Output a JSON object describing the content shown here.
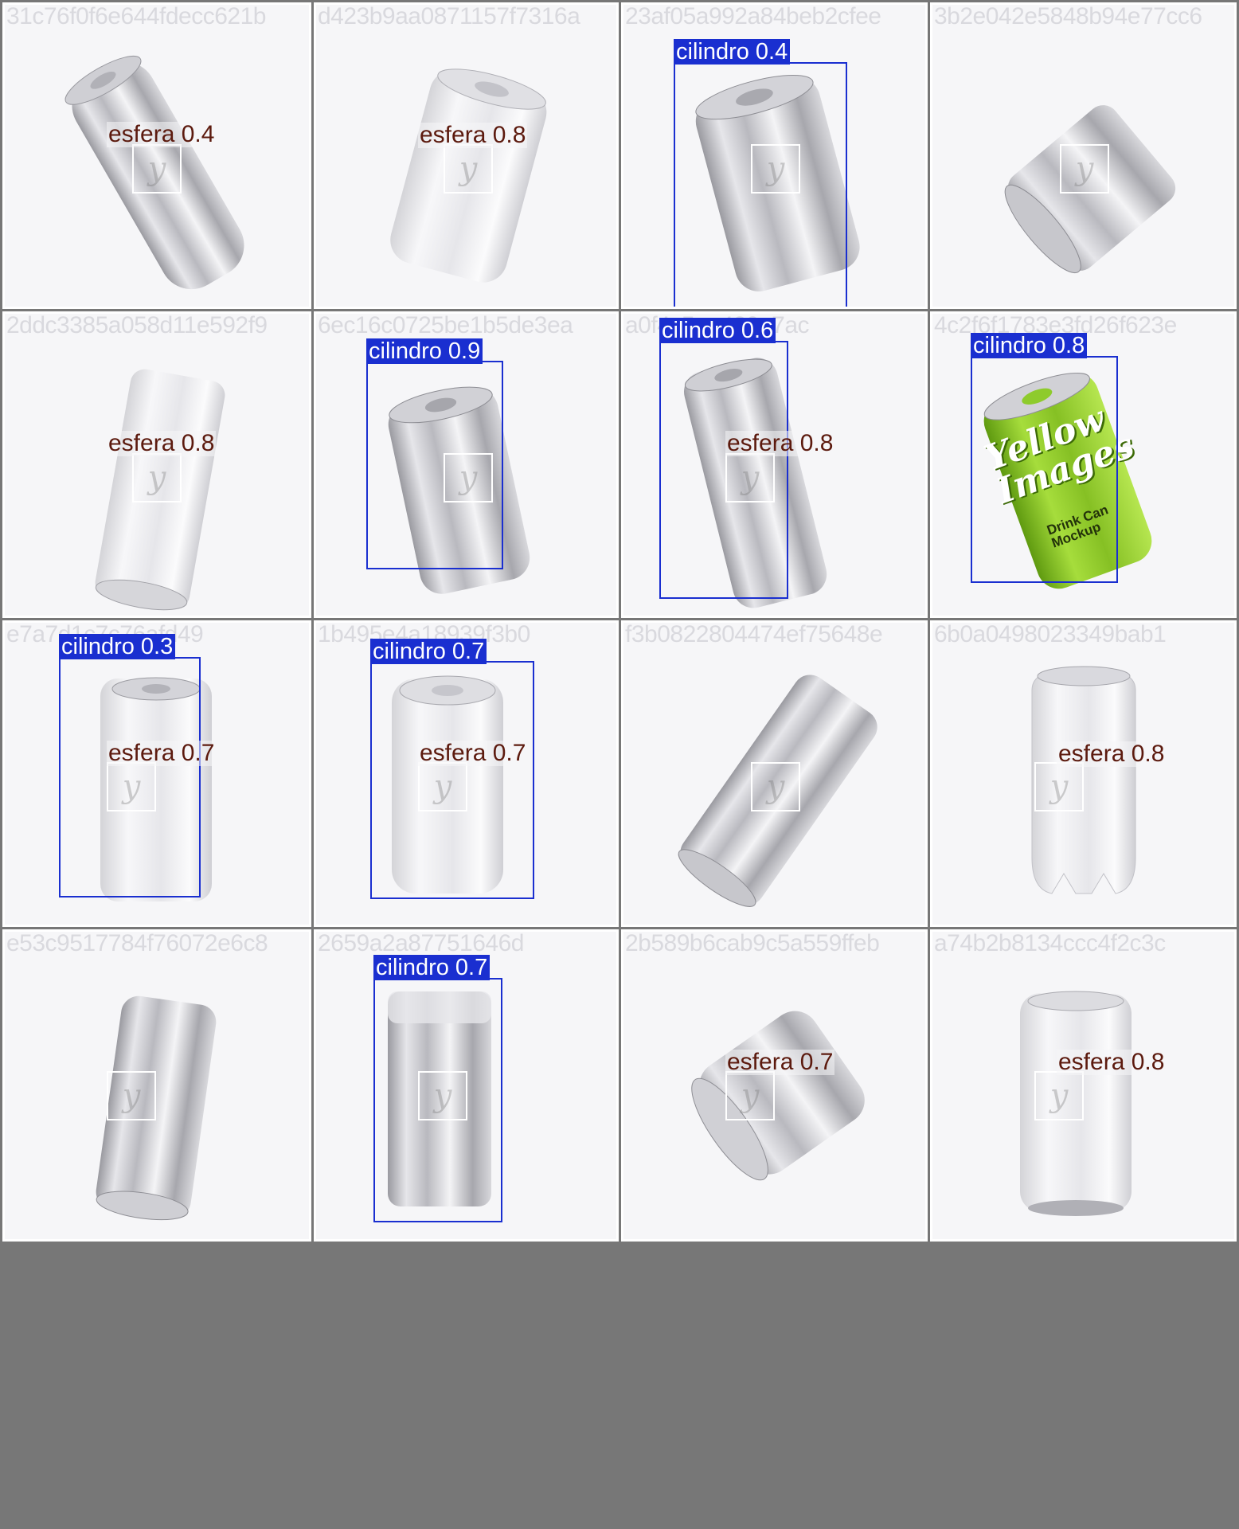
{
  "grid": {
    "cells": [
      {
        "filename": "31c76f0f6e644fdecc621b",
        "detections": [
          {
            "label": "esfera 0.4",
            "kind": "esfera"
          }
        ]
      },
      {
        "filename": "d423b9aa0871157f7316a",
        "detections": [
          {
            "label": "esfera 0.8",
            "kind": "esfera"
          }
        ]
      },
      {
        "filename": "23af05a992a84beb2cfee",
        "detections": [
          {
            "label": "cilindro 0.4",
            "kind": "cilindro"
          }
        ]
      },
      {
        "filename": "3b2e042e5848b94e77cc6",
        "detections": []
      },
      {
        "filename": "2ddc3385a058d11e592f9",
        "detections": [
          {
            "label": "esfera 0.8",
            "kind": "esfera"
          }
        ]
      },
      {
        "filename": "6ec16c0725be1b5de3ea",
        "detections": [
          {
            "label": "cilindro 0.9",
            "kind": "cilindro"
          }
        ]
      },
      {
        "filename": "a0f4c5ee420a7ac",
        "detections": [
          {
            "label": "cilindro 0.6",
            "kind": "cilindro"
          },
          {
            "label": "esfera 0.8",
            "kind": "esfera"
          }
        ]
      },
      {
        "filename": "4c2f6f1783e3fd26f623e",
        "detections": [
          {
            "label": "cilindro 0.8",
            "kind": "cilindro"
          }
        ]
      },
      {
        "filename": "e7a7d1c7c76afd49",
        "detections": [
          {
            "label": "cilindro 0.3",
            "kind": "cilindro"
          },
          {
            "label": "esfera 0.7",
            "kind": "esfera"
          }
        ]
      },
      {
        "filename": "1b495e4a18939f3b0",
        "detections": [
          {
            "label": "cilindro 0.7",
            "kind": "cilindro"
          },
          {
            "label": "esfera 0.7",
            "kind": "esfera"
          }
        ]
      },
      {
        "filename": "f3b0822804474ef75648e",
        "detections": []
      },
      {
        "filename": "6b0a0498023349bab1",
        "detections": [
          {
            "label": "esfera 0.8",
            "kind": "esfera"
          }
        ]
      },
      {
        "filename": "e53c9517784f76072e6c8",
        "detections": []
      },
      {
        "filename": "2659a2a87751646d",
        "detections": [
          {
            "label": "cilindro 0.7",
            "kind": "cilindro"
          }
        ]
      },
      {
        "filename": "2b589b6cab9c5a559ffeb",
        "detections": [
          {
            "label": "esfera 0.7",
            "kind": "esfera"
          }
        ]
      },
      {
        "filename": "a74b2b8134ccc4f2c3c",
        "detections": [
          {
            "label": "esfera 0.8",
            "kind": "esfera"
          }
        ]
      }
    ]
  },
  "cans": {
    "green_can_text_1": "Yellow",
    "green_can_text_2": "Images",
    "green_can_text_3": "Drink Can",
    "green_can_text_4": "Mockup"
  },
  "colors": {
    "cilindro": "#1a2fd0",
    "esfera_text": "#5c1a0e",
    "green_can": "#8ecb2c"
  }
}
